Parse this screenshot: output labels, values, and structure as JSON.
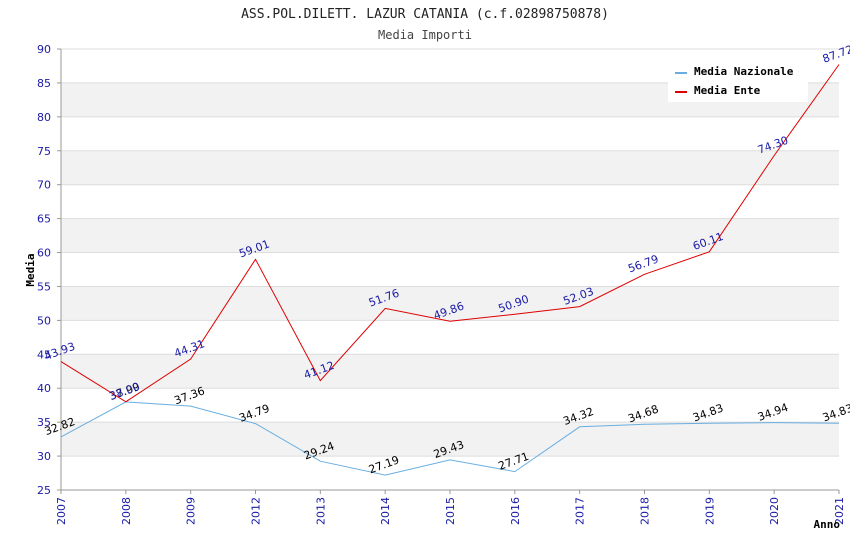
{
  "chart_data": {
    "type": "line",
    "title": "ASS.POL.DILETT. LAZUR CATANIA (c.f.02898750878)",
    "subtitle": "Media Importi",
    "xlabel": "Anno",
    "ylabel": "Media",
    "categories": [
      "2007",
      "2008",
      "2009",
      "2012",
      "2013",
      "2014",
      "2015",
      "2016",
      "2017",
      "2018",
      "2019",
      "2020",
      "2021"
    ],
    "ylim": [
      25,
      90
    ],
    "yticks": [
      25,
      30,
      35,
      40,
      45,
      50,
      55,
      60,
      65,
      70,
      75,
      80,
      85,
      90
    ],
    "grid": true,
    "legend_position": "top-right",
    "series": [
      {
        "name": "Media Nazionale",
        "color": "#6aaee0",
        "label_color": "#000000",
        "values": [
          32.82,
          37.99,
          37.36,
          34.79,
          29.24,
          27.19,
          29.43,
          27.71,
          34.32,
          34.68,
          34.83,
          34.94,
          34.83
        ],
        "labels": [
          "32.82",
          "37.99",
          "37.36",
          "34.79",
          "29.24",
          "27.19",
          "29.43",
          "27.71",
          "34.32",
          "34.68",
          "34.83",
          "34.94",
          "34.83"
        ]
      },
      {
        "name": "Media Ente",
        "color": "#e00000",
        "label_color": "#1a1aa6",
        "values": [
          43.93,
          38.0,
          44.31,
          59.01,
          41.12,
          51.76,
          49.86,
          50.9,
          52.03,
          56.79,
          60.11,
          74.3,
          87.72
        ],
        "labels": [
          "43.93",
          "38.00",
          "44.31",
          "59.01",
          "41.12",
          "51.76",
          "49.86",
          "50.90",
          "52.03",
          "56.79",
          "60.11",
          "74.30",
          "87.72"
        ]
      }
    ]
  }
}
